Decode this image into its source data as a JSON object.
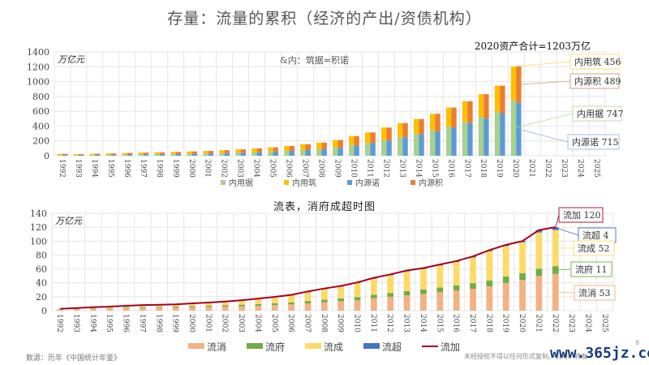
{
  "page": {
    "title": "存量：流量的累积（经济的产出/资债机构）",
    "total_note": "2020资产合计=1203万亿",
    "source": "数源：历年《中国统计年鉴》",
    "rights": "未经授权不得以任何形式复制、引用、转发",
    "watermark": "www.365jz.com",
    "page_number": "8"
  },
  "chart_data": [
    {
      "type": "bar",
      "stacked": true,
      "grouped": true,
      "title": "",
      "unit_label": "万亿元",
      "note": "&内：筑据=积诺",
      "ylim": [
        0,
        1400
      ],
      "yticks": [
        0,
        200,
        400,
        600,
        800,
        1000,
        1200,
        1400
      ],
      "grid": true,
      "legend_position": "bottom",
      "categories": [
        "1992",
        "1993",
        "1994",
        "1995",
        "1996",
        "1997",
        "1998",
        "1999",
        "2000",
        "2001",
        "2002",
        "2003",
        "2004",
        "2005",
        "2006",
        "2007",
        "2008",
        "2009",
        "2010",
        "2011",
        "2012",
        "2013",
        "2014",
        "2015",
        "2016",
        "2017",
        "2018",
        "2019",
        "2020",
        "2021",
        "2022",
        "2023",
        "2024",
        "2025"
      ],
      "groups": [
        {
          "name": "left",
          "series": [
            {
              "name": "内用据",
              "color": "#a9d18e",
              "values": [
                12,
                10,
                13,
                15,
                18,
                20,
                22,
                25,
                28,
                32,
                38,
                44,
                50,
                58,
                68,
                80,
                92,
                112,
                145,
                175,
                215,
                255,
                300,
                345,
                395,
                460,
                530,
                600,
                747,
                null,
                null,
                null,
                null,
                null
              ]
            },
            {
              "name": "内用筑",
              "color": "#ffc000",
              "values": [
                14,
                12,
                15,
                17,
                20,
                22,
                24,
                27,
                30,
                33,
                37,
                42,
                50,
                56,
                64,
                75,
                85,
                100,
                120,
                140,
                165,
                185,
                195,
                220,
                255,
                275,
                300,
                345,
                456,
                null,
                null,
                null,
                null,
                null
              ]
            }
          ]
        },
        {
          "name": "right",
          "series": [
            {
              "name": "内源诺",
              "color": "#5b9bd5",
              "values": [
                10,
                9,
                11,
                13,
                16,
                18,
                20,
                23,
                26,
                30,
                36,
                42,
                48,
                56,
                66,
                78,
                88,
                108,
                140,
                170,
                205,
                245,
                290,
                330,
                380,
                440,
                505,
                575,
                715,
                null,
                null,
                null,
                null,
                null
              ]
            },
            {
              "name": "内源积",
              "color": "#ed7d31",
              "values": [
                16,
                13,
                17,
                19,
                22,
                24,
                26,
                29,
                32,
                35,
                39,
                44,
                52,
                58,
                66,
                77,
                89,
                104,
                125,
                145,
                175,
                195,
                205,
                235,
                270,
                295,
                325,
                370,
                489,
                null,
                null,
                null,
                null,
                null
              ]
            }
          ]
        }
      ],
      "callouts": [
        {
          "series": "内用筑",
          "label": "内用筑 456"
        },
        {
          "series": "内源积",
          "label": "内源积 489"
        },
        {
          "series": "内用据",
          "label": "内用据 747"
        },
        {
          "series": "内源诺",
          "label": "内源诺 715"
        }
      ]
    },
    {
      "type": "bar",
      "stacked": true,
      "title": "流表，消府成超时图",
      "unit_label": "万亿元",
      "ylim": [
        0,
        140
      ],
      "yticks": [
        0,
        20,
        40,
        60,
        80,
        100,
        120,
        140
      ],
      "grid": true,
      "legend_position": "bottom",
      "categories": [
        "1992",
        "1993",
        "1994",
        "1995",
        "1996",
        "1997",
        "1998",
        "1999",
        "2000",
        "2001",
        "2002",
        "2003",
        "2004",
        "2005",
        "2006",
        "2007",
        "2008",
        "2009",
        "2010",
        "2011",
        "2012",
        "2013",
        "2014",
        "2015",
        "2016",
        "2017",
        "2018",
        "2019",
        "2020",
        "2021",
        "2022",
        "2023",
        "2024",
        "2025"
      ],
      "series": [
        {
          "name": "流消",
          "color": "#f4b183",
          "values": [
            1.5,
            2,
            2.5,
            3,
            3.5,
            4,
            4.2,
            4.5,
            5,
            5.5,
            6,
            6.5,
            7,
            8,
            9,
            10.5,
            12,
            13.5,
            15,
            18,
            20,
            22,
            24,
            26.5,
            29,
            31.5,
            35,
            40,
            44,
            50,
            53,
            null,
            null,
            null
          ]
        },
        {
          "name": "流府",
          "color": "#70ad47",
          "values": [
            0.5,
            0.5,
            0.7,
            0.8,
            1,
            1.1,
            1.2,
            1.3,
            1.5,
            1.7,
            1.9,
            2.1,
            2.4,
            2.7,
            3,
            3.4,
            3.8,
            4.2,
            4.6,
            5,
            5.5,
            6,
            6.5,
            7,
            7.5,
            8,
            8.5,
            9,
            10,
            10.5,
            11,
            null,
            null,
            null
          ]
        },
        {
          "name": "流成",
          "color": "#ffd966",
          "values": [
            0.5,
            1.2,
            1.5,
            1.8,
            2.2,
            2.5,
            2.8,
            3,
            3.8,
            4.3,
            5,
            6,
            7.5,
            8.5,
            10,
            12.5,
            15,
            17,
            20,
            23,
            25.5,
            28.5,
            29.5,
            31.5,
            33.5,
            37,
            42,
            44,
            44.5,
            52,
            52,
            null,
            null,
            null
          ]
        },
        {
          "name": "流超",
          "color": "#4472c4",
          "values": [
            0.2,
            0.1,
            0.2,
            0.2,
            0.3,
            0.4,
            0.3,
            0.2,
            0.2,
            0.2,
            0.3,
            0.4,
            0.5,
            0.6,
            0.8,
            1.2,
            1,
            0.9,
            1,
            1.2,
            1.1,
            1.2,
            1.3,
            1.4,
            1.4,
            1.5,
            1.6,
            1.6,
            1.6,
            3.5,
            4,
            null,
            null,
            null
          ]
        }
      ],
      "line": {
        "name": "流加",
        "color": "#a50021",
        "values": [
          2.7,
          3.8,
          4.9,
          5.8,
          7,
          8,
          8.5,
          9,
          10.5,
          11.7,
          13.2,
          15,
          17.4,
          19.8,
          22.8,
          27.6,
          31.8,
          35.6,
          40.6,
          47.2,
          52.1,
          57.7,
          61.3,
          66.4,
          71.4,
          78,
          87.1,
          94.6,
          100.1,
          116,
          120,
          null,
          null,
          null
        ]
      },
      "callouts": [
        {
          "series": "流加",
          "label": "流加 120"
        },
        {
          "series": "流超",
          "label": "流超 4"
        },
        {
          "series": "流成",
          "label": "流成 52"
        },
        {
          "series": "流府",
          "label": "流府 11"
        },
        {
          "series": "流消",
          "label": "流消 53"
        }
      ]
    }
  ]
}
